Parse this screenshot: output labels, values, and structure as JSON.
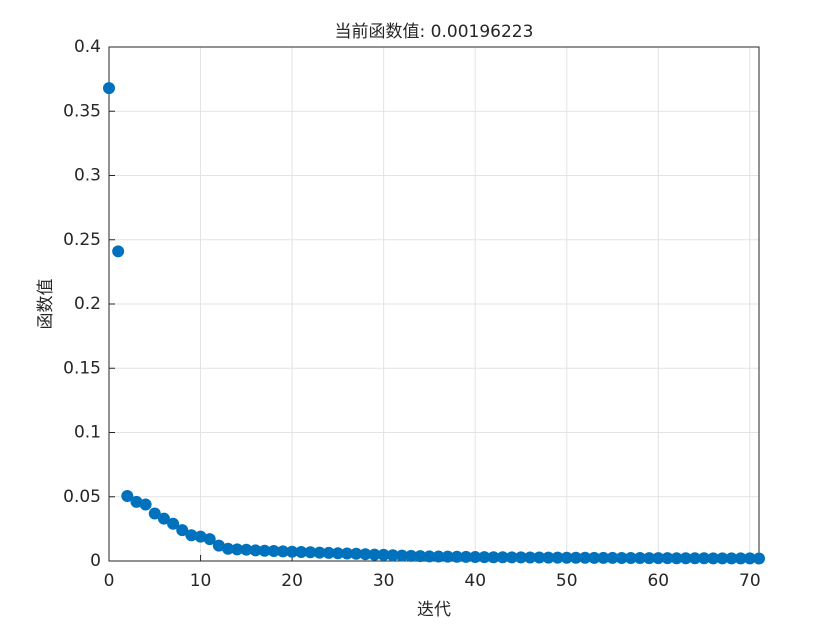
{
  "chart_data": {
    "type": "scatter",
    "title": "当前函数值: 0.00196223",
    "xlabel": "迭代",
    "ylabel": "函数值",
    "x": [
      0,
      1,
      2,
      3,
      4,
      5,
      6,
      7,
      8,
      9,
      10,
      11,
      12,
      13,
      14,
      15,
      16,
      17,
      18,
      19,
      20,
      21,
      22,
      23,
      24,
      25,
      26,
      27,
      28,
      29,
      30,
      31,
      32,
      33,
      34,
      35,
      36,
      37,
      38,
      39,
      40,
      41,
      42,
      43,
      44,
      45,
      46,
      47,
      48,
      49,
      50,
      51,
      52,
      53,
      54,
      55,
      56,
      57,
      58,
      59,
      60,
      61,
      62,
      63,
      64,
      65,
      66,
      67,
      68,
      69,
      70,
      71
    ],
    "values": [
      0.368,
      0.241,
      0.0506,
      0.046,
      0.044,
      0.037,
      0.033,
      0.029,
      0.024,
      0.02,
      0.019,
      0.017,
      0.012,
      0.0095,
      0.009,
      0.0088,
      0.0083,
      0.008,
      0.0078,
      0.0075,
      0.0072,
      0.007,
      0.0068,
      0.0065,
      0.0063,
      0.006,
      0.0058,
      0.0056,
      0.0053,
      0.005,
      0.0048,
      0.0045,
      0.0042,
      0.004,
      0.0038,
      0.0036,
      0.0035,
      0.0034,
      0.0033,
      0.0032,
      0.0031,
      0.003,
      0.0029,
      0.0029,
      0.0028,
      0.0028,
      0.0027,
      0.0027,
      0.0026,
      0.0026,
      0.0025,
      0.0025,
      0.0025,
      0.0024,
      0.0024,
      0.0024,
      0.0023,
      0.0023,
      0.0023,
      0.0022,
      0.0022,
      0.0022,
      0.0021,
      0.0021,
      0.0021,
      0.0021,
      0.002,
      0.002,
      0.002,
      0.002,
      0.002,
      0.00196223
    ],
    "color": "#0072bd",
    "xlim": [
      0,
      71
    ],
    "xticks": [
      0,
      10,
      20,
      30,
      40,
      50,
      60,
      70
    ],
    "ylim": [
      0,
      0.4
    ],
    "yticks": [
      0,
      0.05,
      0.1,
      0.15,
      0.2,
      0.25,
      0.3,
      0.35,
      0.4
    ],
    "grid": true
  }
}
